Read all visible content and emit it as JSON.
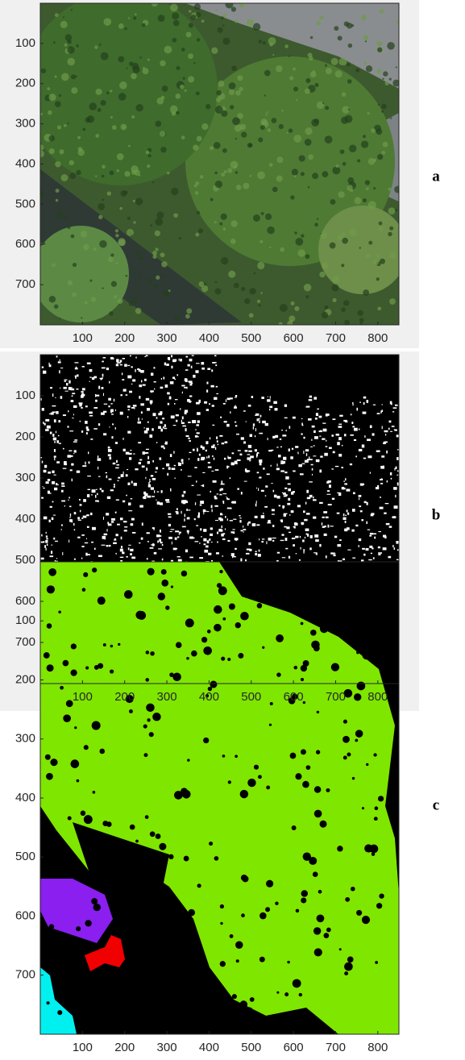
{
  "panels": [
    {
      "label": "a",
      "xlim": [
        0,
        850
      ],
      "ylim": [
        0,
        800
      ],
      "xticks": [
        100,
        200,
        300,
        400,
        500,
        600,
        700,
        800
      ],
      "yticks": [
        100,
        200,
        300,
        400,
        500,
        600,
        700
      ]
    },
    {
      "label": "b",
      "xlim": [
        0,
        850
      ],
      "ylim": [
        0,
        800
      ],
      "xticks": [
        100,
        200,
        300,
        400,
        500,
        600,
        700,
        800
      ],
      "yticks": [
        100,
        200,
        300,
        400,
        500,
        600,
        700
      ]
    },
    {
      "label": "c",
      "xlim": [
        0,
        850
      ],
      "ylim": [
        0,
        800
      ],
      "xticks": [
        100,
        200,
        300,
        400,
        500,
        600,
        700,
        800
      ],
      "yticks": [
        100,
        200,
        300,
        400,
        500,
        600,
        700
      ]
    }
  ]
}
